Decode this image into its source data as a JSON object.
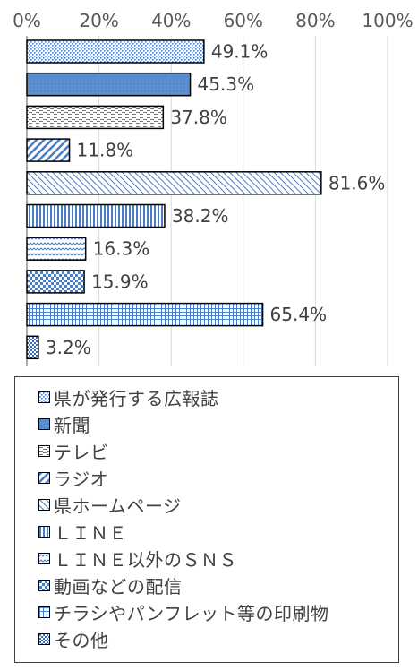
{
  "chart_data": {
    "type": "bar",
    "orientation": "horizontal",
    "xlim": [
      0,
      100
    ],
    "ticks": [
      "0%",
      "20%",
      "40%",
      "60%",
      "80%",
      "100%"
    ],
    "grid": true,
    "legend_position": "bottom",
    "value_labels": [
      "49.1%",
      "45.3%",
      "37.8%",
      "11.8%",
      "81.6%",
      "38.2%",
      "16.3%",
      "15.9%",
      "65.4%",
      "3.2%"
    ],
    "series": [
      {
        "name": "県が発行する広報誌",
        "value": 49.1,
        "pattern": "dots",
        "color": "#5b8fd1"
      },
      {
        "name": "新聞",
        "value": 45.3,
        "pattern": "solid",
        "color": "#5b8fd1"
      },
      {
        "name": "テレビ",
        "value": 37.8,
        "pattern": "dashes",
        "color": "#5b8fd1"
      },
      {
        "name": "ラジオ",
        "value": 11.8,
        "pattern": "diag-down",
        "color": "#5b8fd1"
      },
      {
        "name": "県ホームページ",
        "value": 81.6,
        "pattern": "diag-up",
        "color": "#5b8fd1"
      },
      {
        "name": "ＬＩＮＥ",
        "value": 38.2,
        "pattern": "vertical",
        "color": "#5b8fd1"
      },
      {
        "name": "ＬＩＮＥ以外のＳＮＳ",
        "value": 16.3,
        "pattern": "wave",
        "color": "#5b8fd1"
      },
      {
        "name": "動画などの配信",
        "value": 15.9,
        "pattern": "checker",
        "color": "#5b8fd1"
      },
      {
        "name": "チラシやパンフレット等の印刷物",
        "value": 65.4,
        "pattern": "grid",
        "color": "#5b8fd1"
      },
      {
        "name": "その他",
        "value": 3.2,
        "pattern": "dense-checker",
        "color": "#5b8fd1"
      }
    ]
  }
}
